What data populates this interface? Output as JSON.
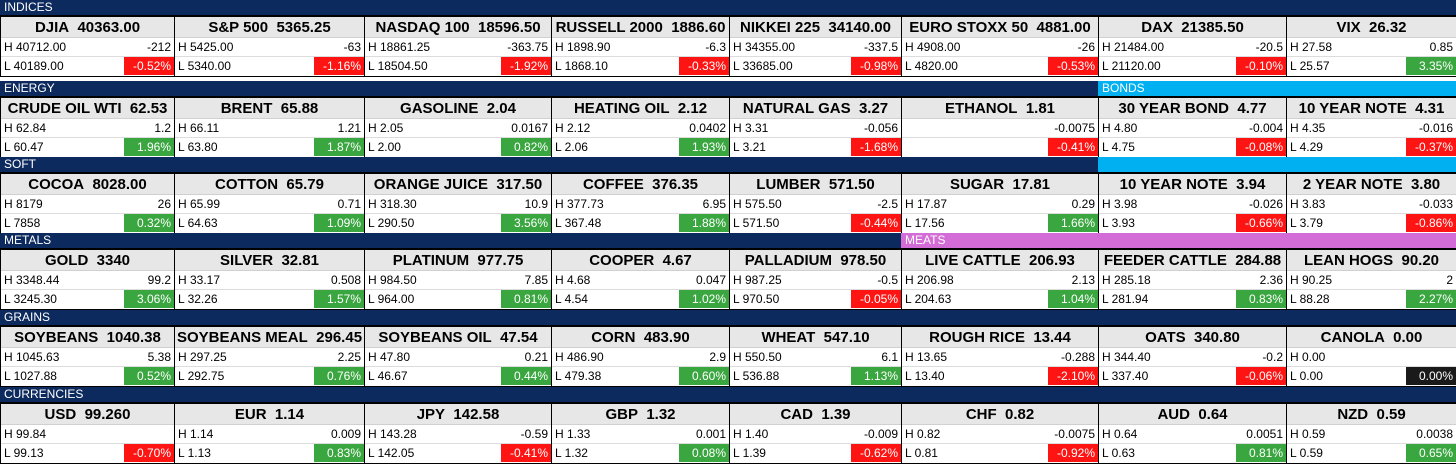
{
  "colors": {
    "section_bar": "#0d2a5e",
    "bonds_bar": "#00b0f0",
    "meats_bar": "#d36cd6",
    "positive": "#3aa640",
    "negative": "#ff1414",
    "neutral": "#1a1a1a",
    "tile_header": "#e7e7e7"
  },
  "sections": [
    {
      "label": "INDICES"
    },
    {
      "label": "ENERGY"
    },
    {
      "label": "BONDS"
    },
    {
      "label": "SOFT"
    },
    {
      "label": ""
    },
    {
      "label": "METALS"
    },
    {
      "label": "MEATS"
    },
    {
      "label": "GRAINS"
    },
    {
      "label": "CURRENCIES"
    }
  ],
  "tiles": [
    {
      "name": "DJIA",
      "price": "40363.00",
      "high": "H 40712.00",
      "low": "L 40189.00",
      "change": "-212",
      "pct": "-0.52%",
      "dir": "neg"
    },
    {
      "name": "S&P 500",
      "price": "5365.25",
      "high": "H 5425.00",
      "low": "L 5340.00",
      "change": "-63",
      "pct": "-1.16%",
      "dir": "neg"
    },
    {
      "name": "NASDAQ 100",
      "price": "18596.50",
      "high": "H 18861.25",
      "low": "L 18504.50",
      "change": "-363.75",
      "pct": "-1.92%",
      "dir": "neg"
    },
    {
      "name": "RUSSELL 2000",
      "price": "1886.60",
      "high": "H 1898.90",
      "low": "L 1868.10",
      "change": "-6.3",
      "pct": "-0.33%",
      "dir": "neg"
    },
    {
      "name": "NIKKEI 225",
      "price": "34140.00",
      "high": "H 34355.00",
      "low": "L 33685.00",
      "change": "-337.5",
      "pct": "-0.98%",
      "dir": "neg"
    },
    {
      "name": "EURO STOXX 50",
      "price": "4881.00",
      "high": "H 4908.00",
      "low": "L 4820.00",
      "change": "-26",
      "pct": "-0.53%",
      "dir": "neg"
    },
    {
      "name": "DAX",
      "price": "21385.50",
      "high": "H 21484.00",
      "low": "L 21120.00",
      "change": "-20.5",
      "pct": "-0.10%",
      "dir": "neg"
    },
    {
      "name": "VIX",
      "price": "26.32",
      "high": "H 27.58",
      "low": "L 25.57",
      "change": "0.85",
      "pct": "3.35%",
      "dir": "pos"
    },
    {
      "name": "CRUDE OIL WTI",
      "price": "62.53",
      "high": "H 62.84",
      "low": "L 60.47",
      "change": "1.2",
      "pct": "1.96%",
      "dir": "pos"
    },
    {
      "name": "BRENT",
      "price": "65.88",
      "high": "H 66.11",
      "low": "L 63.80",
      "change": "1.21",
      "pct": "1.87%",
      "dir": "pos"
    },
    {
      "name": "GASOLINE",
      "price": "2.04",
      "high": "H 2.05",
      "low": "L 2.00",
      "change": "0.0167",
      "pct": "0.82%",
      "dir": "pos"
    },
    {
      "name": "HEATING OIL",
      "price": "2.12",
      "high": "H 2.12",
      "low": "L 2.06",
      "change": "0.0402",
      "pct": "1.93%",
      "dir": "pos"
    },
    {
      "name": "NATURAL GAS",
      "price": "3.27",
      "high": "H 3.31",
      "low": "L 3.21",
      "change": "-0.056",
      "pct": "-1.68%",
      "dir": "neg"
    },
    {
      "name": "ETHANOL",
      "price": "1.81",
      "high": "",
      "low": "",
      "change": "-0.0075",
      "pct": "-0.41%",
      "dir": "neg"
    },
    {
      "name": "30 YEAR BOND",
      "price": "4.77",
      "high": "H 4.80",
      "low": "L 4.75",
      "change": "-0.004",
      "pct": "-0.08%",
      "dir": "neg"
    },
    {
      "name": "10 YEAR NOTE",
      "price": "4.31",
      "high": "H 4.35",
      "low": "L 4.29",
      "change": "-0.016",
      "pct": "-0.37%",
      "dir": "neg"
    },
    {
      "name": "COCOA",
      "price": "8028.00",
      "high": "H 8179",
      "low": "L 7858",
      "change": "26",
      "pct": "0.32%",
      "dir": "pos"
    },
    {
      "name": "COTTON",
      "price": "65.79",
      "high": "H 65.99",
      "low": "L 64.63",
      "change": "0.71",
      "pct": "1.09%",
      "dir": "pos"
    },
    {
      "name": "ORANGE JUICE",
      "price": "317.50",
      "high": "H 318.30",
      "low": "L 290.50",
      "change": "10.9",
      "pct": "3.56%",
      "dir": "pos"
    },
    {
      "name": "COFFEE",
      "price": "376.35",
      "high": "H 377.73",
      "low": "L 367.48",
      "change": "6.95",
      "pct": "1.88%",
      "dir": "pos"
    },
    {
      "name": "LUMBER",
      "price": "571.50",
      "high": "H 575.50",
      "low": "L 571.50",
      "change": "-2.5",
      "pct": "-0.44%",
      "dir": "neg"
    },
    {
      "name": "SUGAR",
      "price": "17.81",
      "high": "H 17.87",
      "low": "L 17.56",
      "change": "0.29",
      "pct": "1.66%",
      "dir": "pos"
    },
    {
      "name": "10 YEAR NOTE",
      "price": "3.94",
      "high": "H 3.98",
      "low": "L 3.93",
      "change": "-0.026",
      "pct": "-0.66%",
      "dir": "neg"
    },
    {
      "name": "2 YEAR NOTE",
      "price": "3.80",
      "high": "H 3.83",
      "low": "L 3.79",
      "change": "-0.033",
      "pct": "-0.86%",
      "dir": "neg"
    },
    {
      "name": "GOLD",
      "price": "3340",
      "high": "H 3348.44",
      "low": "L 3245.30",
      "change": "99.2",
      "pct": "3.06%",
      "dir": "pos"
    },
    {
      "name": "SILVER",
      "price": "32.81",
      "high": "H 33.17",
      "low": "L 32.26",
      "change": "0.508",
      "pct": "1.57%",
      "dir": "pos"
    },
    {
      "name": "PLATINUM",
      "price": "977.75",
      "high": "H 984.50",
      "low": "L 964.00",
      "change": "7.85",
      "pct": "0.81%",
      "dir": "pos"
    },
    {
      "name": "COOPER",
      "price": "4.67",
      "high": "H 4.68",
      "low": "L 4.54",
      "change": "0.047",
      "pct": "1.02%",
      "dir": "pos"
    },
    {
      "name": "PALLADIUM",
      "price": "978.50",
      "high": "H 987.25",
      "low": "L 970.50",
      "change": "-0.5",
      "pct": "-0.05%",
      "dir": "neg"
    },
    {
      "name": "LIVE CATTLE",
      "price": "206.93",
      "high": "H 206.98",
      "low": "L 204.63",
      "change": "2.13",
      "pct": "1.04%",
      "dir": "pos"
    },
    {
      "name": "FEEDER CATTLE",
      "price": "284.88",
      "high": "H 285.18",
      "low": "L 281.94",
      "change": "2.36",
      "pct": "0.83%",
      "dir": "pos"
    },
    {
      "name": "LEAN HOGS",
      "price": "90.20",
      "high": "H 90.25",
      "low": "L 88.28",
      "change": "2",
      "pct": "2.27%",
      "dir": "pos"
    },
    {
      "name": "SOYBEANS",
      "price": "1040.38",
      "high": "H 1045.63",
      "low": "L 1027.88",
      "change": "5.38",
      "pct": "0.52%",
      "dir": "pos"
    },
    {
      "name": "SOYBEANS MEAL",
      "price": "296.45",
      "high": "H 297.25",
      "low": "L 292.75",
      "change": "2.25",
      "pct": "0.76%",
      "dir": "pos"
    },
    {
      "name": "SOYBEANS OIL",
      "price": "47.54",
      "high": "H 47.80",
      "low": "L 46.67",
      "change": "0.21",
      "pct": "0.44%",
      "dir": "pos"
    },
    {
      "name": "CORN",
      "price": "483.90",
      "high": "H 486.90",
      "low": "L 479.38",
      "change": "2.9",
      "pct": "0.60%",
      "dir": "pos"
    },
    {
      "name": "WHEAT",
      "price": "547.10",
      "high": "H 550.50",
      "low": "L 536.88",
      "change": "6.1",
      "pct": "1.13%",
      "dir": "pos"
    },
    {
      "name": "ROUGH RICE",
      "price": "13.44",
      "high": "H 13.65",
      "low": "L 13.40",
      "change": "-0.288",
      "pct": "-2.10%",
      "dir": "neg"
    },
    {
      "name": "OATS",
      "price": "340.80",
      "high": "H 344.40",
      "low": "L 337.40",
      "change": "-0.2",
      "pct": "-0.06%",
      "dir": "neg"
    },
    {
      "name": "CANOLA",
      "price": "0.00",
      "high": "H 0.00",
      "low": "L 0.00",
      "change": "",
      "pct": "0.00%",
      "dir": "flat"
    },
    {
      "name": "USD",
      "price": "99.260",
      "high": "H 99.84",
      "low": "L 99.13",
      "change": "",
      "pct": "-0.70%",
      "dir": "neg"
    },
    {
      "name": "EUR",
      "price": "1.14",
      "high": "H 1.14",
      "low": "L 1.13",
      "change": "0.009",
      "pct": "0.83%",
      "dir": "pos"
    },
    {
      "name": "JPY",
      "price": "142.58",
      "high": "H 143.28",
      "low": "L 142.05",
      "change": "-0.59",
      "pct": "-0.41%",
      "dir": "neg"
    },
    {
      "name": "GBP",
      "price": "1.32",
      "high": "H 1.33",
      "low": "L 1.32",
      "change": "0.001",
      "pct": "0.08%",
      "dir": "pos"
    },
    {
      "name": "CAD",
      "price": "1.39",
      "high": "H 1.40",
      "low": "L 1.39",
      "change": "-0.009",
      "pct": "-0.62%",
      "dir": "neg"
    },
    {
      "name": "CHF",
      "price": "0.82",
      "high": "H 0.82",
      "low": "L 0.81",
      "change": "-0.0075",
      "pct": "-0.92%",
      "dir": "neg"
    },
    {
      "name": "AUD",
      "price": "0.64",
      "high": "H 0.64",
      "low": "L 0.63",
      "change": "0.0051",
      "pct": "0.81%",
      "dir": "pos"
    },
    {
      "name": "NZD",
      "price": "0.59",
      "high": "H 0.59",
      "low": "L 0.59",
      "change": "0.0038",
      "pct": "0.65%",
      "dir": "pos"
    }
  ]
}
